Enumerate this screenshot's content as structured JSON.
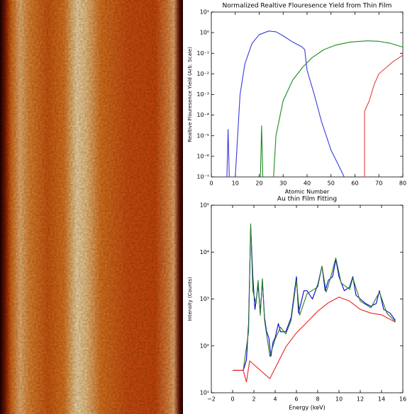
{
  "chart_data": [
    {
      "type": "line",
      "title": "Normalized Realtive Flouresence Yield from Thin Film",
      "x_label": "Atomic Number",
      "y_label": "Realtive Flouresence Yield (Arb. Scale)",
      "log_y": true,
      "xlim": [
        0,
        80
      ],
      "xticks": [
        0,
        10,
        20,
        30,
        40,
        50,
        60,
        70,
        80
      ],
      "ylim": [
        1e-07,
        10
      ],
      "yticks": [
        {
          "value": 10,
          "label": "10¹"
        },
        {
          "value": 1,
          "label": "10⁰"
        },
        {
          "value": 0.1,
          "label": "10⁻¹"
        },
        {
          "value": 0.01,
          "label": "10⁻²"
        },
        {
          "value": 0.001,
          "label": "10⁻³"
        },
        {
          "value": 0.0001,
          "label": "10⁻⁴"
        },
        {
          "value": 1e-05,
          "label": "10⁻⁵"
        },
        {
          "value": 1e-06,
          "label": "10⁻⁶"
        },
        {
          "value": 1e-07,
          "label": "10⁻⁷"
        }
      ],
      "series": [
        {
          "color": "#3b3bdc",
          "x": [
            6.5,
            7,
            7.5,
            null,
            10,
            12,
            14,
            17,
            20,
            24,
            27,
            30,
            34,
            38,
            39,
            40,
            43,
            46,
            50,
            53,
            55.5
          ],
          "values": [
            1e-07,
            2e-05,
            1e-07,
            null,
            1e-07,
            0.001,
            0.03,
            0.3,
            0.8,
            1.2,
            1.1,
            0.7,
            0.35,
            0.2,
            0.15,
            0.015,
            0.001,
            5e-05,
            2e-06,
            4e-07,
            1e-07
          ]
        },
        {
          "color": "#1f8a1f",
          "x": [
            20.5,
            21,
            21.5,
            null,
            26,
            27,
            30,
            34,
            38,
            42,
            47,
            52,
            58,
            65,
            70,
            75,
            80
          ],
          "values": [
            1e-07,
            3e-05,
            1e-07,
            null,
            1e-07,
            1e-05,
            0.0005,
            0.005,
            0.02,
            0.06,
            0.15,
            0.25,
            0.35,
            0.4,
            0.38,
            0.3,
            0.2
          ]
        },
        {
          "color": "#e04040",
          "x": [
            64,
            64,
            66,
            68,
            70,
            73,
            76,
            80
          ],
          "values": [
            1e-07,
            0.00015,
            0.0005,
            0.003,
            0.01,
            0.02,
            0.04,
            0.08
          ]
        }
      ]
    },
    {
      "type": "line",
      "title": "Au thin Film Fitting",
      "x_label": "Energy (keV)",
      "y_label": "Intensity (Counts)",
      "log_y": true,
      "xlim": [
        -2,
        16
      ],
      "xticks": [
        {
          "value": -2,
          "label": "−2"
        },
        0,
        2,
        4,
        6,
        8,
        10,
        12,
        14,
        16
      ],
      "ylim": [
        10,
        100000
      ],
      "yticks": [
        {
          "value": 10,
          "label": "10¹"
        },
        {
          "value": 100,
          "label": "10²"
        },
        {
          "value": 1000,
          "label": "10³"
        },
        {
          "value": 10000,
          "label": "10⁴"
        },
        {
          "value": 100000,
          "label": "10⁵"
        }
      ],
      "series": [
        {
          "color": "#0000d0",
          "x": [
            0,
            1,
            1.3,
            1.5,
            1.7,
            1.9,
            2.1,
            2.4,
            2.6,
            2.8,
            3.0,
            3.2,
            3.4,
            3.6,
            3.8,
            4.0,
            4.3,
            4.5,
            5.0,
            5.5,
            6.0,
            6.2,
            6.7,
            7.0,
            7.5,
            8.0,
            8.4,
            8.7,
            9.0,
            9.4,
            9.7,
            10.0,
            10.5,
            11.0,
            11.3,
            11.6,
            12.0,
            12.5,
            13.0,
            13.5,
            13.8,
            14.2,
            14.8,
            15.3
          ],
          "values": [
            30,
            30,
            50,
            300,
            35000,
            3000,
            600,
            2000,
            500,
            2500,
            400,
            200,
            150,
            60,
            120,
            150,
            300,
            200,
            200,
            400,
            3000,
            500,
            1500,
            1500,
            1000,
            2000,
            5000,
            1500,
            2500,
            3000,
            7000,
            3000,
            1500,
            1800,
            3000,
            1200,
            1000,
            800,
            700,
            800,
            1500,
            600,
            500,
            350
          ]
        },
        {
          "color": "#2a7a2a",
          "x": [
            0,
            1,
            1.5,
            1.7,
            1.9,
            2.2,
            2.4,
            2.6,
            2.8,
            3.0,
            3.5,
            4.0,
            4.5,
            5.0,
            5.5,
            6.0,
            6.3,
            7.0,
            8.0,
            8.4,
            8.8,
            9.2,
            9.7,
            10.2,
            11.0,
            11.3,
            12.0,
            13.0,
            13.8,
            14.5,
            15.3
          ],
          "values": [
            30,
            30,
            200,
            40000,
            1500,
            800,
            2500,
            450,
            2700,
            350,
            60,
            140,
            250,
            180,
            350,
            2500,
            450,
            1300,
            1800,
            5000,
            1400,
            2800,
            7500,
            2200,
            1600,
            2800,
            900,
            650,
            1400,
            500,
            330
          ]
        },
        {
          "color": "#ee2222",
          "x": [
            0,
            1,
            1.3,
            1.6,
            3.5,
            5,
            6,
            7,
            8,
            9,
            10,
            11,
            12,
            13,
            14,
            15,
            15.3
          ],
          "values": [
            30,
            30,
            17,
            48,
            20,
            95,
            190,
            320,
            550,
            830,
            1100,
            900,
            600,
            500,
            460,
            350,
            320
          ]
        }
      ]
    }
  ]
}
